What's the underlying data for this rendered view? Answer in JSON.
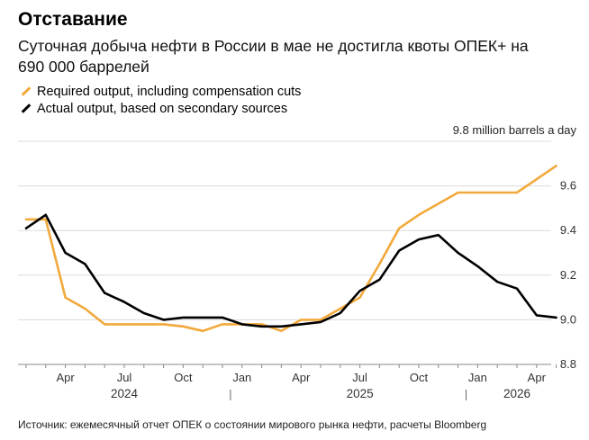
{
  "header": {
    "title": "Отставание",
    "subtitle": "Суточная добыча нефти в России в мае не достигла квоты ОПЕК+ на 690 000 баррелей"
  },
  "footer": {
    "source": "Источник: ежемесячный отчет ОПЕК о состоянии мирового рынка нефти, расчеты Bloomberg"
  },
  "chart_data": {
    "type": "line",
    "unit_label": "9.8 million barrels a day",
    "ylim": [
      8.8,
      9.8
    ],
    "yticks": [
      "9.6",
      "9.4",
      "9.2",
      "9.0",
      "8.8"
    ],
    "ytick_values": [
      9.6,
      9.4,
      9.2,
      9.0,
      8.8
    ],
    "xlim": [
      "2024-02",
      "2026-05"
    ],
    "x": [
      "2024-02",
      "2024-03",
      "2024-04",
      "2024-05",
      "2024-06",
      "2024-07",
      "2024-08",
      "2024-09",
      "2024-10",
      "2024-11",
      "2024-12",
      "2025-01",
      "2025-02",
      "2025-03",
      "2025-04",
      "2025-05",
      "2025-06",
      "2025-07",
      "2025-08",
      "2025-09",
      "2025-10",
      "2025-11",
      "2025-12",
      "2026-01",
      "2026-02",
      "2026-03",
      "2026-04",
      "2026-05"
    ],
    "xticks": [
      {
        "label": "Apr",
        "x": "2024-04"
      },
      {
        "label": "Jul",
        "x": "2024-07"
      },
      {
        "label": "Oct",
        "x": "2024-10"
      },
      {
        "label": "Jan",
        "x": "2025-01"
      },
      {
        "label": "Apr",
        "x": "2025-04"
      },
      {
        "label": "Jul",
        "x": "2025-07"
      },
      {
        "label": "Oct",
        "x": "2025-10"
      },
      {
        "label": "Jan",
        "x": "2026-01"
      },
      {
        "label": "Apr",
        "x": "2026-04"
      }
    ],
    "years": [
      {
        "label": "2024",
        "x": "2024-07"
      },
      {
        "label": "2025",
        "x": "2025-07"
      },
      {
        "label": "2026",
        "x": "2026-03"
      }
    ],
    "year_separators": [
      "2024-12",
      "2025-12"
    ],
    "series": [
      {
        "name": "Required output, including compensation cuts",
        "color": "#f2a93b",
        "values": [
          9.45,
          9.45,
          9.1,
          9.05,
          8.98,
          8.98,
          8.98,
          8.98,
          8.97,
          8.95,
          8.98,
          8.98,
          8.98,
          8.95,
          9.0,
          9.0,
          9.05,
          9.1,
          9.25,
          9.41,
          9.47,
          9.52,
          9.57,
          9.57,
          9.57,
          9.57,
          9.63,
          9.69
        ]
      },
      {
        "name": "Actual output, based on secondary sources",
        "color": "#000000",
        "values": [
          9.41,
          9.47,
          9.3,
          9.25,
          9.12,
          9.08,
          9.03,
          9.0,
          9.01,
          9.01,
          9.01,
          8.98,
          8.97,
          8.97,
          8.98,
          8.99,
          9.03,
          9.13,
          9.18,
          9.31,
          9.36,
          9.38,
          9.3,
          9.24,
          9.17,
          9.14,
          9.02,
          9.01
        ]
      }
    ]
  }
}
